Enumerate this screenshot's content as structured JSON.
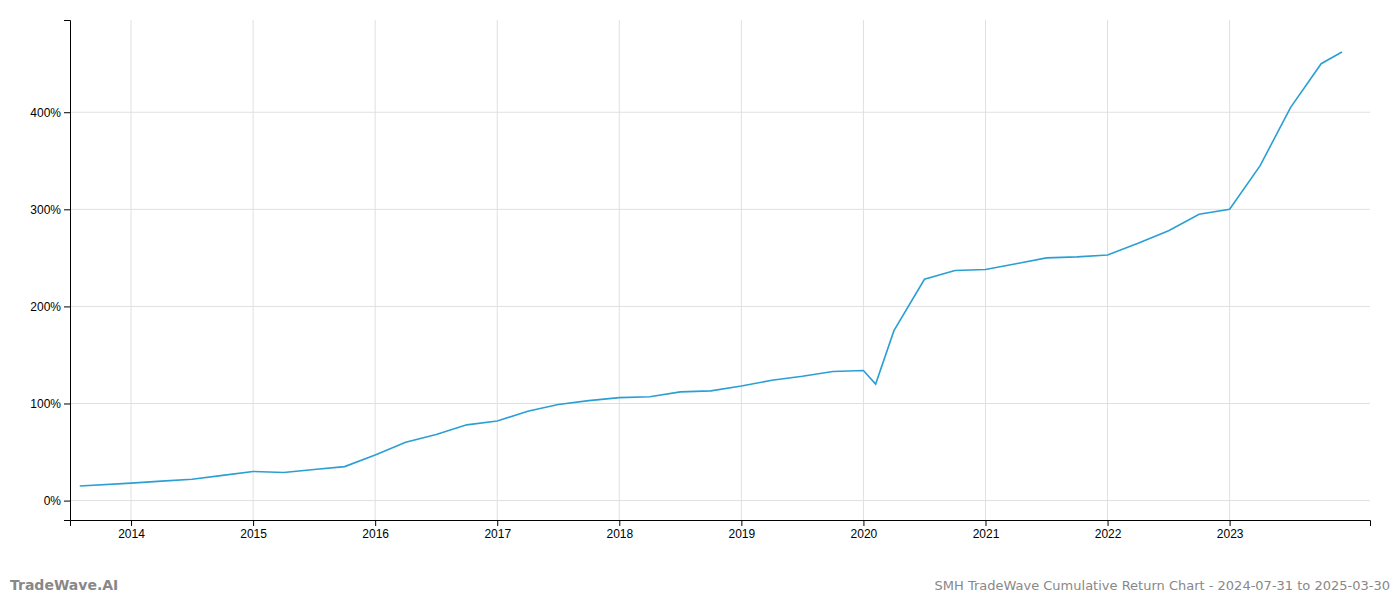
{
  "chart_data": {
    "type": "line",
    "title": "SMH TradeWave Cumulative Return Chart - 2024-07-31 to 2025-03-30",
    "annotations": [
      "TradeWave.AI"
    ],
    "color": "#2b9fd4",
    "grid": true,
    "x": [
      2013.58,
      2014.0,
      2014.25,
      2014.5,
      2014.75,
      2015.0,
      2015.25,
      2015.5,
      2015.75,
      2016.0,
      2016.25,
      2016.5,
      2016.75,
      2017.0,
      2017.25,
      2017.5,
      2017.75,
      2018.0,
      2018.25,
      2018.5,
      2018.75,
      2019.0,
      2019.25,
      2019.5,
      2019.75,
      2020.0,
      2020.1,
      2020.25,
      2020.5,
      2020.75,
      2021.0,
      2021.25,
      2021.5,
      2021.75,
      2022.0,
      2022.25,
      2022.5,
      2022.75,
      2023.0,
      2023.25,
      2023.5,
      2023.75,
      2023.92
    ],
    "values": [
      15,
      18,
      20,
      22,
      26,
      30,
      29,
      32,
      35,
      47,
      60,
      68,
      78,
      82,
      92,
      99,
      103,
      106,
      107,
      112,
      113,
      118,
      124,
      128,
      133,
      134,
      120,
      175,
      228,
      237,
      238,
      244,
      250,
      251,
      253,
      265,
      278,
      295,
      300,
      345,
      405,
      450,
      462
    ],
    "xlim": [
      2013.5,
      2024.15
    ],
    "xticks": [
      2014,
      2015,
      2016,
      2017,
      2018,
      2019,
      2020,
      2021,
      2022,
      2023
    ],
    "ylim": [
      -20,
      495
    ],
    "yticks": [
      {
        "value": 0,
        "label": "0%"
      },
      {
        "value": 100,
        "label": "100%"
      },
      {
        "value": 200,
        "label": "200%"
      },
      {
        "value": 300,
        "label": "300%"
      },
      {
        "value": 400,
        "label": "400%"
      }
    ]
  }
}
